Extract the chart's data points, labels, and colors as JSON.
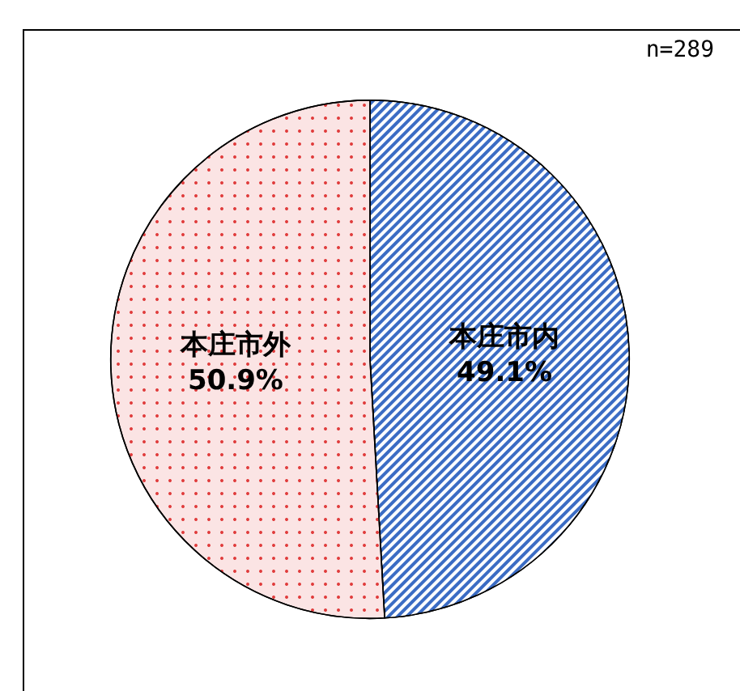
{
  "chart_data": {
    "type": "pie",
    "categories": [
      "本庄市内",
      "本庄市外"
    ],
    "values": [
      49.1,
      50.9
    ],
    "colors": [
      "#3b6cc4",
      "#fbe4e4"
    ],
    "value_labels": [
      "49.1%",
      "50.9%"
    ],
    "legend": false,
    "annotations": [
      "n=289"
    ]
  }
}
